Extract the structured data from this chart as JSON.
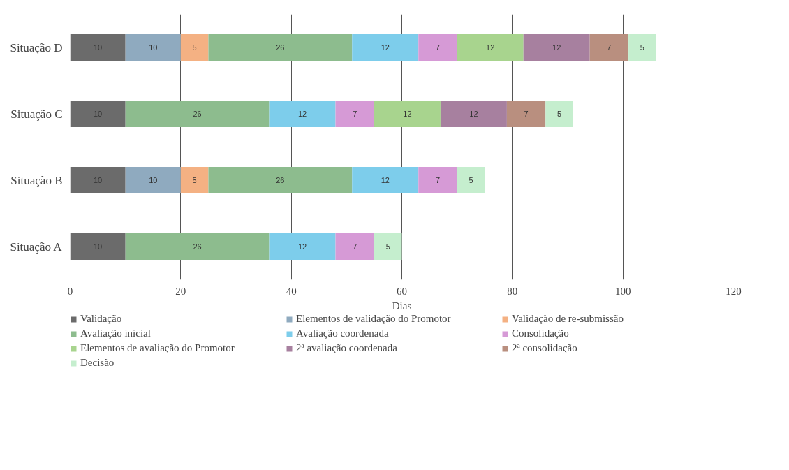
{
  "chart_data": {
    "type": "bar",
    "orientation": "horizontal",
    "stacked": true,
    "xlabel": "Dias",
    "categories": [
      "Situação D",
      "Situação C",
      "Situação B",
      "Situação A"
    ],
    "xlim": [
      0,
      120
    ],
    "xticks": [
      0,
      20,
      40,
      60,
      80,
      100,
      120
    ],
    "grid": "x",
    "legend": "bottom",
    "data_labels": true,
    "series": [
      {
        "name": "Validação",
        "color": "#6b6b6b",
        "values": [
          10,
          10,
          10,
          10
        ]
      },
      {
        "name": "Elementos de validação do Promotor",
        "color": "#8faabf",
        "values": [
          10,
          null,
          10,
          null
        ]
      },
      {
        "name": "Validação de re-submissão",
        "color": "#f4b183",
        "values": [
          5,
          null,
          5,
          null
        ]
      },
      {
        "name": "Avaliação inicial",
        "color": "#8dbc8e",
        "values": [
          26,
          26,
          26,
          26
        ]
      },
      {
        "name": "Avaliação coordenada",
        "color": "#7dcdeb",
        "values": [
          12,
          12,
          12,
          12
        ]
      },
      {
        "name": "Consolidação",
        "color": "#d69ad6",
        "values": [
          7,
          7,
          7,
          7
        ]
      },
      {
        "name": "Elementos de avaliação do Promotor",
        "color": "#a8d48e",
        "values": [
          12,
          12,
          null,
          null
        ]
      },
      {
        "name": "2ª avaliação coordenada",
        "color": "#a7809f",
        "values": [
          12,
          12,
          null,
          null
        ]
      },
      {
        "name": "2ª consolidação",
        "color": "#b98f7f",
        "values": [
          7,
          7,
          null,
          null
        ]
      },
      {
        "name": "Decisão",
        "color": "#c5eece",
        "values": [
          5,
          5,
          5,
          5
        ]
      }
    ]
  }
}
